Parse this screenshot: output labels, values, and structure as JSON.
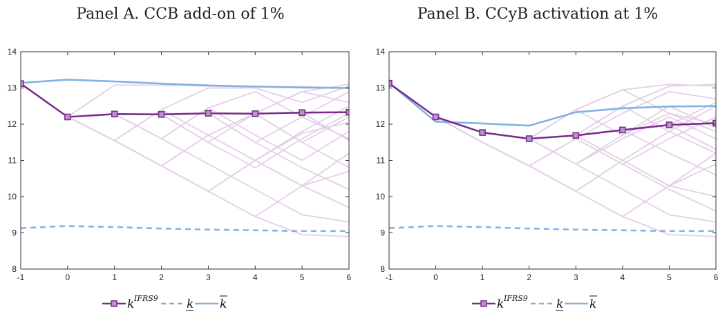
{
  "colors": {
    "fan": "#e3cfe6",
    "k_ifrs9": "#7b2d8e",
    "k_lower": "#7fb3e3",
    "k_upper": "#7fb3e3",
    "axis": "#333333"
  },
  "chart_data": [
    {
      "type": "line",
      "title": "Panel A. CCB add-on of 1%",
      "xlabel": "",
      "ylabel": "",
      "x": [
        -1,
        0,
        1,
        2,
        3,
        4,
        5,
        6
      ],
      "x_ticks": [
        "-1",
        "0",
        "1",
        "2",
        "3",
        "4",
        "5",
        "6"
      ],
      "y_ticks": [
        "8",
        "9",
        "10",
        "11",
        "12",
        "13",
        "14"
      ],
      "xlim": [
        -1,
        6
      ],
      "ylim": [
        8,
        14
      ],
      "grid": false,
      "legend": "bottom-center",
      "series": [
        {
          "name": "k^IFRS9",
          "style": "solid-square-markers",
          "values": [
            13.12,
            12.2,
            12.28,
            12.27,
            12.3,
            12.29,
            12.32,
            12.33
          ]
        },
        {
          "name": "k (lower bar)",
          "style": "dashed",
          "values": [
            9.13,
            9.19,
            9.16,
            9.12,
            9.09,
            9.07,
            9.05,
            9.05
          ]
        },
        {
          "name": "k (upper bar)",
          "style": "solid",
          "values": [
            13.14,
            13.23,
            13.18,
            13.12,
            13.07,
            13.04,
            13.01,
            13.0
          ]
        }
      ],
      "fan_paths": [
        [
          13.12,
          12.2,
          13.08,
          13.08,
          13.05,
          13.03,
          13.04,
          13.0
        ],
        [
          13.12,
          12.2,
          11.55,
          12.4,
          13.0,
          13.0,
          12.6,
          13.05
        ],
        [
          13.12,
          12.2,
          11.55,
          10.85,
          11.7,
          12.3,
          12.9,
          13.1
        ],
        [
          13.12,
          12.2,
          11.55,
          10.85,
          10.15,
          11.0,
          11.8,
          12.5
        ],
        [
          13.12,
          12.2,
          11.55,
          10.85,
          10.15,
          9.45,
          10.3,
          11.2
        ],
        [
          13.12,
          12.2,
          11.55,
          10.85,
          10.15,
          9.45,
          8.95,
          8.9
        ],
        [
          13.12,
          12.2,
          12.28,
          11.6,
          12.45,
          12.9,
          12.2,
          11.6
        ],
        [
          13.12,
          12.2,
          12.28,
          12.27,
          11.5,
          10.8,
          11.6,
          12.3
        ],
        [
          13.12,
          12.2,
          12.28,
          12.27,
          12.3,
          11.5,
          10.8,
          10.2
        ],
        [
          13.12,
          12.2,
          12.28,
          12.27,
          12.3,
          12.29,
          11.5,
          10.8
        ],
        [
          13.12,
          12.2,
          12.28,
          12.27,
          12.3,
          12.29,
          12.32,
          11.55
        ],
        [
          13.12,
          12.2,
          11.55,
          10.85,
          11.7,
          11.0,
          11.75,
          12.05
        ],
        [
          13.12,
          12.2,
          12.28,
          11.6,
          10.9,
          10.2,
          9.5,
          9.3
        ],
        [
          13.12,
          12.2,
          12.28,
          12.27,
          11.5,
          12.3,
          12.9,
          12.6
        ],
        [
          13.12,
          12.2,
          12.28,
          12.27,
          12.3,
          11.5,
          12.2,
          12.9
        ],
        [
          13.12,
          12.2,
          11.55,
          12.4,
          11.7,
          11.0,
          10.3,
          10.7
        ],
        [
          13.12,
          12.2,
          12.28,
          12.27,
          12.3,
          12.29,
          11.5,
          12.2
        ],
        [
          13.12,
          12.2,
          11.55,
          10.85,
          10.15,
          11.0,
          10.3,
          9.7
        ],
        [
          13.12,
          12.2,
          12.28,
          11.6,
          12.45,
          11.7,
          11.0,
          11.8
        ]
      ]
    },
    {
      "type": "line",
      "title": "Panel B. CCyB activation at 1%",
      "xlabel": "",
      "ylabel": "",
      "x": [
        -1,
        0,
        1,
        2,
        3,
        4,
        5,
        6
      ],
      "x_ticks": [
        "-1",
        "0",
        "1",
        "2",
        "3",
        "4",
        "5",
        "6"
      ],
      "y_ticks": [
        "8",
        "9",
        "10",
        "11",
        "12",
        "13",
        "14"
      ],
      "xlim": [
        -1,
        6
      ],
      "ylim": [
        8,
        14
      ],
      "grid": false,
      "legend": "bottom-center",
      "series": [
        {
          "name": "k^IFRS9",
          "style": "solid-square-markers",
          "values": [
            13.13,
            12.2,
            11.77,
            11.6,
            11.69,
            11.84,
            11.98,
            12.03
          ]
        },
        {
          "name": "k (lower bar)",
          "style": "dashed",
          "values": [
            9.13,
            9.19,
            9.16,
            9.12,
            9.09,
            9.07,
            9.05,
            9.05
          ]
        },
        {
          "name": "k (upper bar)",
          "style": "solid",
          "values": [
            13.14,
            12.07,
            12.02,
            11.96,
            12.33,
            12.44,
            12.49,
            12.5
          ]
        }
      ],
      "fan_paths": [
        [
          13.13,
          12.2,
          11.77,
          11.6,
          12.4,
          12.95,
          13.1,
          13.05
        ],
        [
          13.13,
          12.2,
          11.77,
          11.6,
          11.69,
          12.5,
          13.05,
          13.1
        ],
        [
          13.13,
          12.2,
          11.5,
          10.85,
          11.6,
          12.3,
          12.9,
          12.7
        ],
        [
          13.13,
          12.2,
          11.5,
          10.85,
          10.15,
          11.0,
          11.8,
          12.5
        ],
        [
          13.13,
          12.2,
          11.5,
          10.85,
          10.15,
          9.45,
          10.3,
          11.2
        ],
        [
          13.13,
          12.2,
          11.5,
          10.85,
          10.15,
          9.45,
          8.95,
          8.9
        ],
        [
          13.13,
          12.2,
          11.77,
          11.6,
          10.9,
          10.2,
          9.5,
          9.3
        ],
        [
          13.13,
          12.2,
          11.77,
          11.6,
          11.69,
          11.0,
          10.3,
          10.0
        ],
        [
          13.13,
          12.2,
          11.77,
          11.6,
          11.69,
          11.84,
          11.2,
          10.6
        ],
        [
          13.13,
          12.2,
          11.77,
          11.6,
          11.69,
          11.84,
          11.98,
          11.3
        ],
        [
          13.13,
          12.2,
          11.77,
          11.6,
          12.4,
          11.7,
          12.3,
          12.0
        ],
        [
          13.13,
          12.2,
          11.5,
          10.85,
          11.6,
          10.9,
          11.6,
          12.2
        ],
        [
          13.13,
          12.2,
          11.77,
          11.6,
          11.69,
          12.5,
          11.8,
          11.2
        ],
        [
          13.13,
          12.2,
          11.5,
          10.85,
          10.15,
          11.0,
          10.3,
          10.9
        ],
        [
          13.13,
          12.2,
          11.77,
          11.6,
          10.9,
          11.6,
          12.2,
          11.6
        ],
        [
          13.13,
          12.2,
          11.77,
          11.6,
          12.4,
          12.95,
          12.3,
          11.8
        ],
        [
          13.13,
          12.2,
          11.5,
          10.85,
          11.6,
          10.9,
          10.2,
          9.6
        ],
        [
          13.13,
          12.2,
          11.77,
          11.6,
          11.69,
          11.84,
          11.98,
          12.6
        ],
        [
          13.13,
          12.2,
          11.77,
          11.6,
          10.9,
          11.7,
          12.5,
          11.9
        ]
      ]
    }
  ],
  "legend": {
    "ifrs9_label": "k",
    "ifrs9_sup": "IFRS9",
    "lower_label": "k",
    "upper_label": "k"
  }
}
